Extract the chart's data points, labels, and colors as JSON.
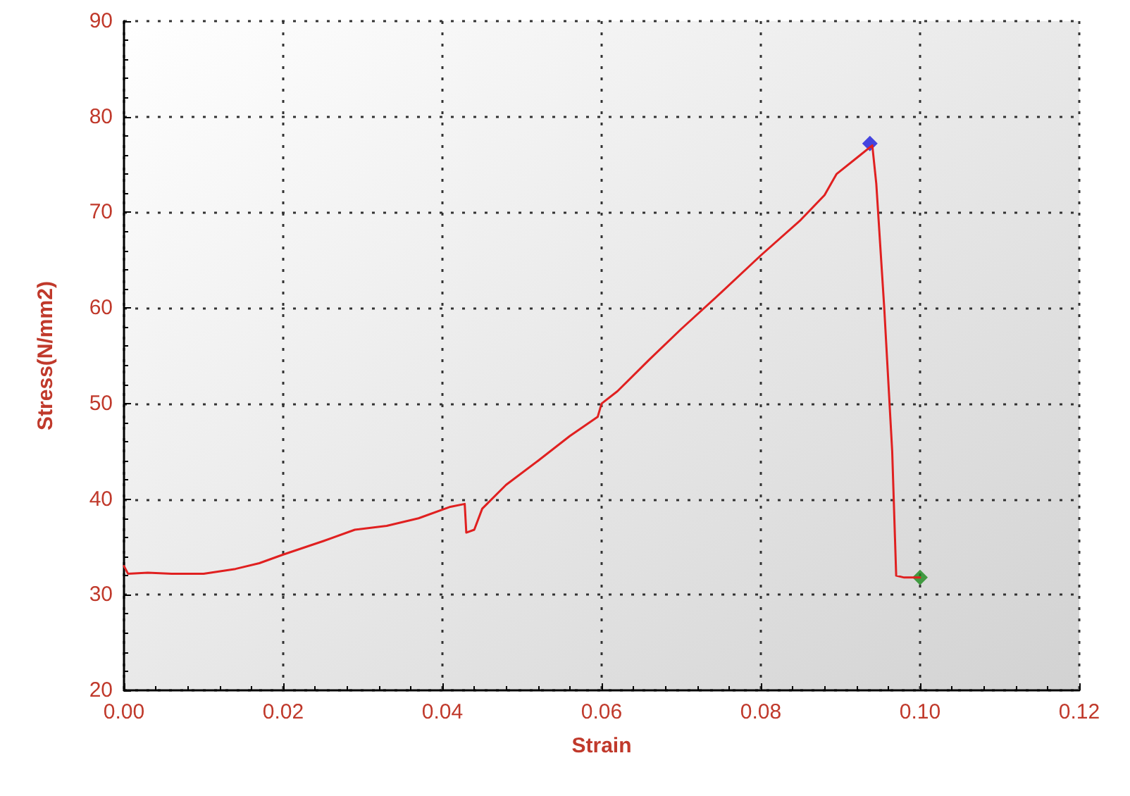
{
  "chart_data": {
    "type": "line",
    "xlabel": "Strain",
    "ylabel": "Stress(N/mm2)",
    "xlim": [
      0,
      0.12
    ],
    "xticks": [
      {
        "value": 0,
        "label": "0.00"
      },
      {
        "value": 0.02,
        "label": "0.02"
      },
      {
        "value": 0.04,
        "label": "0.04"
      },
      {
        "value": 0.06,
        "label": "0.06"
      },
      {
        "value": 0.08,
        "label": "0.08"
      },
      {
        "value": 0.1,
        "label": "0.10"
      },
      {
        "value": 0.12,
        "label": "0.12"
      }
    ],
    "ylim": [
      20,
      90
    ],
    "yticks": [
      20,
      30,
      40,
      50,
      60,
      70,
      80,
      90
    ],
    "grid": true,
    "marker": "none",
    "line_style": "solid",
    "series": [
      {
        "color": "#e02020",
        "x": [
          0,
          0.0005,
          0.003,
          0.006,
          0.01,
          0.014,
          0.017,
          0.02,
          0.025,
          0.029,
          0.033,
          0.037,
          0.041,
          0.0428,
          0.043,
          0.044,
          0.045,
          0.048,
          0.052,
          0.056,
          0.0595,
          0.06,
          0.062,
          0.066,
          0.07,
          0.075,
          0.08,
          0.085,
          0.088,
          0.0895,
          0.0925,
          0.094,
          0.0945,
          0.0955,
          0.0965,
          0.097,
          0.098,
          0.1
        ],
        "values": [
          33,
          32.2,
          32.3,
          32.2,
          32.2,
          32.7,
          33.3,
          34.2,
          35.6,
          36.8,
          37.2,
          38,
          39.2,
          39.5,
          36.5,
          36.8,
          39,
          41.5,
          44,
          46.6,
          48.6,
          50,
          51.3,
          54.6,
          57.8,
          61.6,
          65.5,
          69.2,
          71.8,
          74,
          76,
          77,
          73,
          60,
          45,
          32,
          31.8,
          31.8
        ]
      },
      {
        "type": "scatter",
        "marker": "diamond",
        "color": "#1a1adc",
        "x": [
          0.0937
        ],
        "values": [
          77.2
        ]
      },
      {
        "type": "scatter",
        "marker": "diamond",
        "color": "#1a8a1a",
        "x": [
          0.1
        ],
        "values": [
          31.8
        ]
      }
    ]
  }
}
